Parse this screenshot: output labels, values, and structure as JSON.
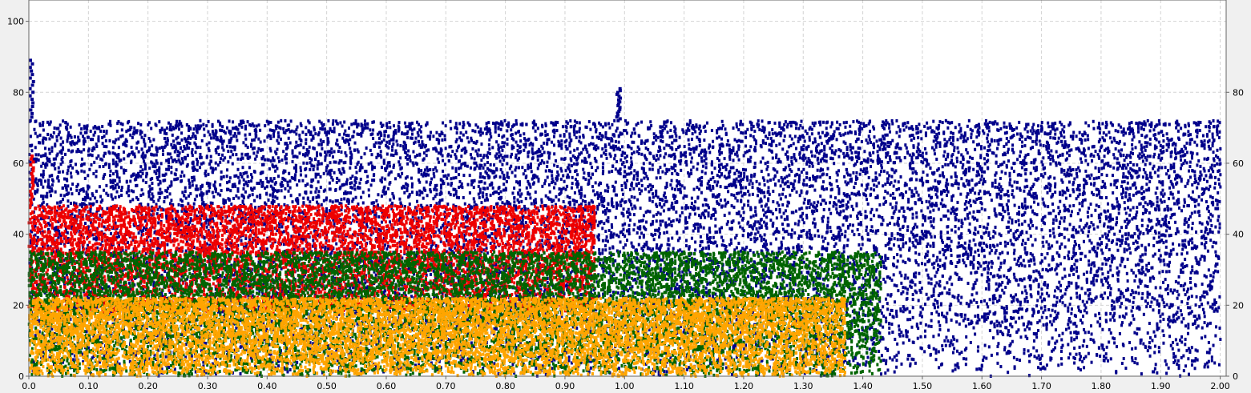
{
  "chart_data": {
    "type": "scatter",
    "title": "",
    "xlabel": "",
    "ylabel": "",
    "xlim": [
      0.0,
      2.01
    ],
    "ylim": [
      0,
      106
    ],
    "grid": true,
    "legend": "none",
    "x_ticks": [
      "0.0",
      "0.10",
      "0.20",
      "0.30",
      "0.40",
      "0.50",
      "0.60",
      "0.70",
      "0.80",
      "0.90",
      "1.00",
      "1.10",
      "1.20",
      "1.30",
      "1.40",
      "1.50",
      "1.60",
      "1.70",
      "1.80",
      "1.90",
      "2.00"
    ],
    "x_tick_values": [
      0.0,
      0.1,
      0.2,
      0.3,
      0.4,
      0.5,
      0.6,
      0.7,
      0.8,
      0.9,
      1.0,
      1.1,
      1.2,
      1.3,
      1.4,
      1.5,
      1.6,
      1.7,
      1.8,
      1.9,
      2.0
    ],
    "y_ticks_left": [
      "0",
      "20",
      "40",
      "60",
      "80",
      "100"
    ],
    "y_ticks_right": [
      "0",
      "20",
      "40",
      "60",
      "80"
    ],
    "y_tick_values": [
      0,
      20,
      40,
      60,
      80,
      100
    ],
    "series": [
      {
        "color": "#00008b",
        "x_range": [
          0.0,
          2.0
        ],
        "y_range": [
          0,
          72
        ],
        "peaks": [
          {
            "x": 0.005,
            "y": 89
          },
          {
            "x": 0.99,
            "y": 81
          }
        ]
      },
      {
        "color": "#ee0000",
        "x_range": [
          0.0,
          0.95
        ],
        "y_range": [
          18,
          48
        ],
        "peaks": [
          {
            "x": 0.005,
            "y": 62
          }
        ]
      },
      {
        "color": "#006400",
        "x_range": [
          0.0,
          1.43
        ],
        "y_range": [
          0,
          35
        ]
      },
      {
        "color": "#ffa500",
        "x_range": [
          0.0,
          1.37
        ],
        "y_range": [
          0,
          22
        ]
      }
    ]
  }
}
